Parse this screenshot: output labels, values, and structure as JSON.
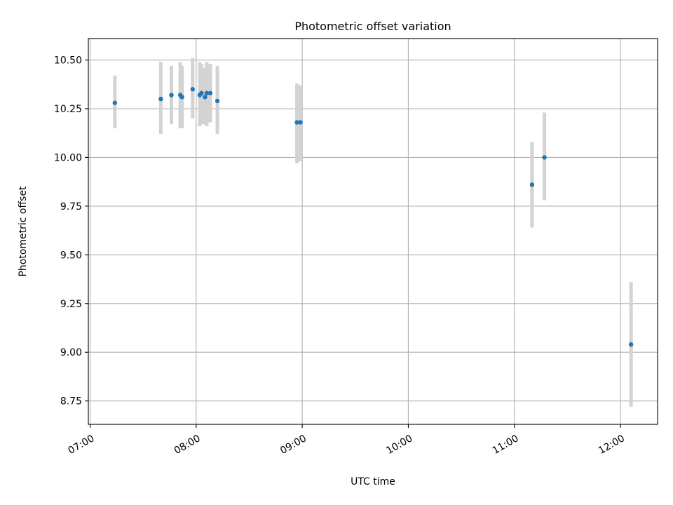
{
  "chart_data": {
    "type": "scatter",
    "title": "Photometric offset variation",
    "xlabel": "UTC time",
    "ylabel": "Photometric offset",
    "x_axis": {
      "type": "time",
      "range": [
        "06:59",
        "12:21"
      ],
      "ticks": [
        "07:00",
        "08:00",
        "09:00",
        "10:00",
        "11:00",
        "12:00"
      ]
    },
    "y_axis": {
      "range": [
        8.63,
        10.61
      ],
      "ticks": [
        8.75,
        9.0,
        9.25,
        9.5,
        9.75,
        10.0,
        10.25,
        10.5
      ],
      "tick_labels": [
        "8.75",
        "9.00",
        "9.25",
        "9.50",
        "9.75",
        "10.00",
        "10.25",
        "10.50"
      ]
    },
    "grid": true,
    "point_color": "#1f77b4",
    "errorbar_color": "#d3d3d3",
    "series": [
      {
        "points": [
          {
            "t": "07:14",
            "y": 10.28,
            "lo": 10.15,
            "hi": 10.42
          },
          {
            "t": "07:40",
            "y": 10.3,
            "lo": 10.12,
            "hi": 10.49
          },
          {
            "t": "07:46",
            "y": 10.32,
            "lo": 10.17,
            "hi": 10.47
          },
          {
            "t": "07:51",
            "y": 10.32,
            "lo": 10.15,
            "hi": 10.49
          },
          {
            "t": "07:52",
            "y": 10.31,
            "lo": 10.15,
            "hi": 10.47
          },
          {
            "t": "07:58",
            "y": 10.35,
            "lo": 10.2,
            "hi": 10.51
          },
          {
            "t": "08:02",
            "y": 10.32,
            "lo": 10.16,
            "hi": 10.49
          },
          {
            "t": "08:03",
            "y": 10.33,
            "lo": 10.17,
            "hi": 10.48
          },
          {
            "t": "08:05",
            "y": 10.31,
            "lo": 10.17,
            "hi": 10.46
          },
          {
            "t": "08:06",
            "y": 10.33,
            "lo": 10.16,
            "hi": 10.49
          },
          {
            "t": "08:08",
            "y": 10.33,
            "lo": 10.18,
            "hi": 10.48
          },
          {
            "t": "08:12",
            "y": 10.29,
            "lo": 10.12,
            "hi": 10.47
          },
          {
            "t": "08:57",
            "y": 10.18,
            "lo": 9.97,
            "hi": 10.38
          },
          {
            "t": "08:59",
            "y": 10.18,
            "lo": 9.98,
            "hi": 10.37
          },
          {
            "t": "11:10",
            "y": 9.86,
            "lo": 9.64,
            "hi": 10.08
          },
          {
            "t": "11:17",
            "y": 10.0,
            "lo": 9.78,
            "hi": 10.23
          },
          {
            "t": "12:06",
            "y": 9.04,
            "lo": 8.72,
            "hi": 9.36
          }
        ]
      }
    ]
  }
}
